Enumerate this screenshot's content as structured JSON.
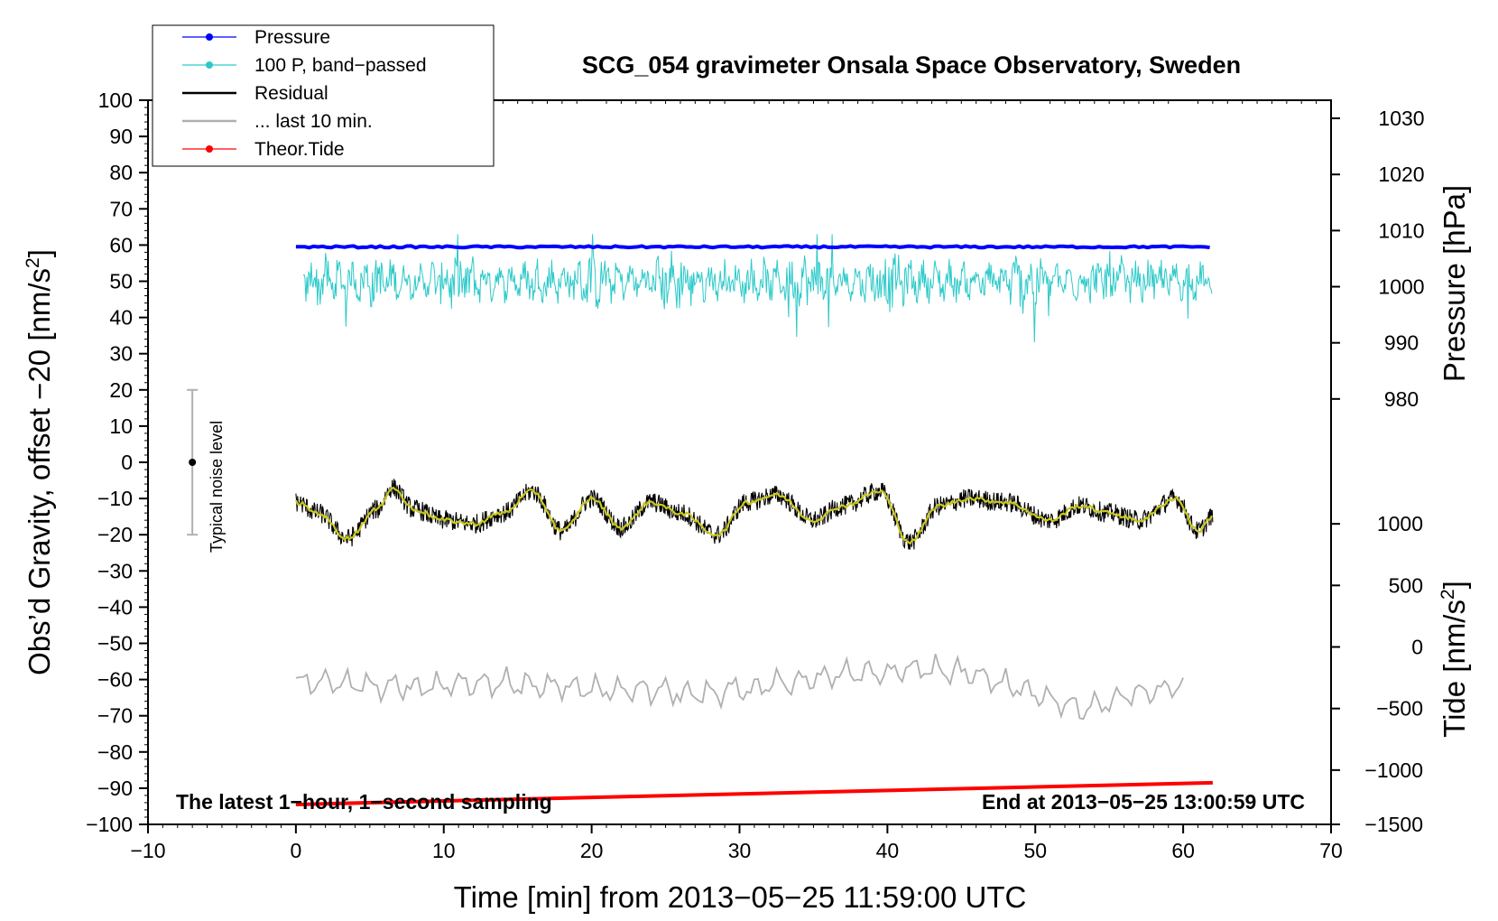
{
  "chart_data": {
    "type": "line",
    "title": "SCG_054 gravimeter Onsala Space Observatory, Sweden",
    "xlabel": "Time [min] from 2013−05−25 11:59:00 UTC",
    "ylabel_left_main": "Obs’d Gravity, offset −20 [nm/s",
    "ylabel_left_sup": "2",
    "ylabel_left_end": "]",
    "ylabel_right_pressure": "Pressure [hPa]",
    "ylabel_right_tide_main": "Tide [nm/s",
    "ylabel_right_tide_sup": "2",
    "ylabel_right_tide_end": "]",
    "xlim": [
      -10,
      70
    ],
    "ylim": [
      -100,
      100
    ],
    "x_ticks": [
      -10,
      0,
      10,
      20,
      30,
      40,
      50,
      60,
      70
    ],
    "x_tick_labels": [
      "−10",
      "0",
      "10",
      "20",
      "30",
      "40",
      "50",
      "60",
      "70"
    ],
    "y_ticks": [
      100,
      90,
      80,
      70,
      60,
      50,
      40,
      30,
      20,
      10,
      0,
      -10,
      -20,
      -30,
      -40,
      -50,
      -60,
      -70,
      -80,
      -90,
      -100
    ],
    "y_tick_labels": [
      "100",
      "90",
      "80",
      "70",
      "60",
      "50",
      "40",
      "30",
      "20",
      "10",
      "0",
      "−10",
      "−20",
      "−30",
      "−40",
      "−50",
      "−60",
      "−70",
      "−80",
      "−90",
      "−100"
    ],
    "pressure_axis": {
      "ticks": [
        1030,
        1020,
        1010,
        1000,
        990,
        980
      ],
      "tick_labels": [
        "1030",
        "1020",
        "1010",
        "1000",
        "990",
        "980"
      ],
      "gravity_equivalent": [
        95,
        79.5,
        64,
        48.5,
        33,
        17.5
      ]
    },
    "tide_axis": {
      "ticks": [
        1000,
        500,
        0,
        -500,
        -1000,
        -1500
      ],
      "tick_labels": [
        "1000",
        "500",
        "0",
        "−500",
        "−1000",
        "−1500"
      ],
      "gravity_equivalent": [
        -17,
        -34,
        -51,
        -68,
        -85,
        -100
      ]
    },
    "legend": [
      {
        "label": "Pressure",
        "color": "#0000ff",
        "marker": "dot"
      },
      {
        "label": "100 P, band−passed",
        "color": "#2cc9c9",
        "marker": "dot"
      },
      {
        "label": "Residual",
        "color": "#000000",
        "marker": "none"
      },
      {
        "label": "... last 10 min.",
        "color": "#b0b0b0",
        "marker": "none"
      },
      {
        "label": "Theor.Tide",
        "color": "#ff0000",
        "marker": "dot"
      }
    ],
    "series": [
      {
        "name": "Pressure",
        "color": "#0000ff",
        "x_range": [
          0,
          62
        ],
        "level_gravity_units": 59.5,
        "level_hPa": 1008.8
      },
      {
        "name": "100 P, band−passed",
        "color": "#2cc9c9",
        "x_range": [
          0.5,
          62
        ],
        "center": 50,
        "min": 31,
        "max": 63
      },
      {
        "name": "Residual",
        "color": "#000000",
        "x": [
          0,
          1.5,
          3.5,
          5.5,
          6.5,
          8,
          10,
          12,
          14,
          16,
          18,
          20,
          22,
          24,
          26,
          28.5,
          30.5,
          32.5,
          35,
          37,
          39.5,
          41.5,
          43.5,
          45.5,
          48,
          51,
          53,
          55,
          57,
          59.5,
          61,
          62
        ],
        "values": [
          -11,
          -14,
          -21,
          -13,
          -7,
          -13,
          -16,
          -17,
          -14,
          -8,
          -19,
          -10,
          -18,
          -11,
          -14,
          -20,
          -11,
          -9,
          -16,
          -12,
          -8,
          -22,
          -12,
          -10,
          -11,
          -16,
          -12,
          -14,
          -16,
          -10,
          -19,
          -15
        ]
      },
      {
        "name": "Residual (smoothed)",
        "color": "#c8c81e",
        "x": [
          0,
          1.5,
          3.5,
          5.5,
          6.5,
          8,
          10,
          12,
          14,
          16,
          18,
          20,
          22,
          24,
          26,
          28.5,
          30.5,
          32.5,
          35,
          37,
          39.5,
          41.5,
          43.5,
          45.5,
          48,
          51,
          53,
          55,
          57,
          59.5,
          61,
          62
        ],
        "values": [
          -11,
          -14,
          -21,
          -13,
          -7,
          -13,
          -16,
          -17,
          -14,
          -8,
          -19,
          -10,
          -18,
          -11,
          -14,
          -20,
          -11,
          -9,
          -16,
          -12,
          -8,
          -22,
          -12,
          -10,
          -11,
          -16,
          -12,
          -14,
          -16,
          -10,
          -19,
          -15
        ]
      },
      {
        "name": "... last 10 min.",
        "color": "#b0b0b0",
        "x": [
          0,
          3,
          6,
          9,
          12,
          15,
          18,
          21,
          24,
          27,
          30,
          33,
          36,
          39,
          42,
          45,
          48,
          50,
          52,
          53.5,
          55,
          57,
          58.5,
          60
        ],
        "values": [
          -61,
          -61,
          -62,
          -62,
          -61,
          -61,
          -62,
          -63,
          -63,
          -64,
          -63,
          -61,
          -59,
          -58,
          -57,
          -58,
          -61,
          -64,
          -67,
          -68,
          -66,
          -64,
          -63,
          -61
        ]
      },
      {
        "name": "Theor.Tide",
        "color": "#ff0000",
        "x": [
          0,
          62
        ],
        "values": [
          -94.5,
          -88.5
        ]
      }
    ],
    "annotations": {
      "noise_label": "Typical noise level",
      "noise_bar": {
        "x": -7,
        "center": 0,
        "low": -20,
        "high": 20
      },
      "bottom_left": "The latest 1−hour, 1−second sampling",
      "bottom_right": "End at 2013−05−25 13:00:59 UTC"
    },
    "grid": false,
    "legend_position": "top-left"
  }
}
